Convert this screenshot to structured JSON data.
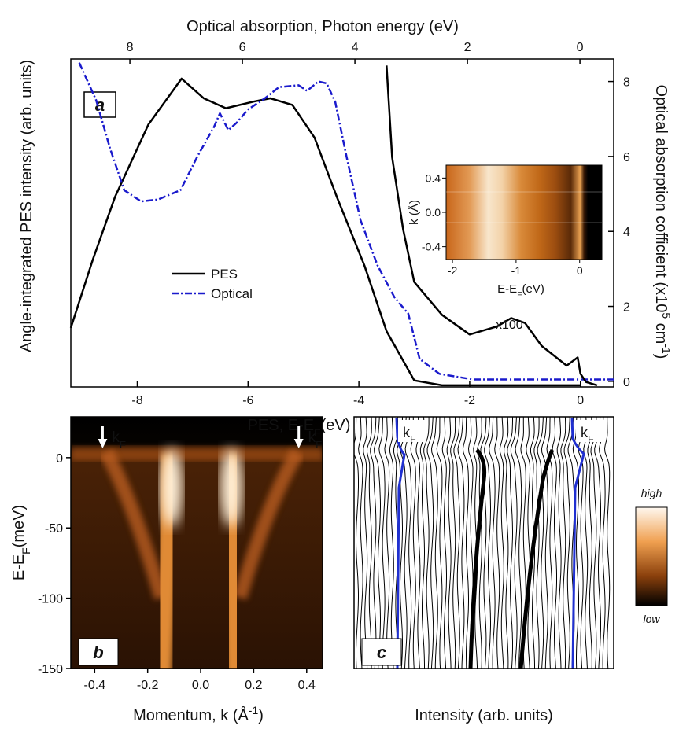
{
  "chart_data": [
    {
      "type": "line",
      "panel_label": "a",
      "xlabel": [
        "PES,  E-E",
        "F",
        "(eV)"
      ],
      "x2label": "Optical absorption, Photon energy (eV)",
      "ylabel": "Angle-integrated PES intensity (arb. units)",
      "y2label": [
        "Optical absorption cofficient (x10",
        "5",
        " cm",
        "-1",
        ")"
      ],
      "xlim": [
        -9.2,
        0.6
      ],
      "xticks": [
        -8,
        -6,
        -4,
        -2,
        0
      ],
      "x2lim": [
        9.05,
        -0.6
      ],
      "x2ticks": [
        8,
        6,
        4,
        2,
        0
      ],
      "ylim": [
        0,
        100
      ],
      "y2lim": [
        -0.15,
        8.6
      ],
      "y2ticks": [
        0,
        2,
        4,
        6,
        8
      ],
      "legend": "center-left",
      "series": [
        {
          "name": "PES",
          "color": "#000000",
          "x": [
            -9.2,
            -8.8,
            -8.4,
            -7.8,
            -7.2,
            -6.8,
            -6.4,
            -5.9,
            -5.6,
            -5.2,
            -4.8,
            -4.4,
            -3.9,
            -3.5,
            -3.2,
            -3.0,
            -2.5,
            0
          ],
          "values": [
            18,
            39,
            58,
            80,
            94,
            88,
            85,
            87,
            88,
            86,
            76,
            58,
            37,
            17,
            8,
            2,
            0.5,
            0.5
          ]
        },
        {
          "name": "Optical",
          "color": "#1a1acc",
          "axis": "y2",
          "x_axis": "x2",
          "dash": true,
          "x": [
            8.9,
            8.6,
            8.35,
            8.1,
            7.8,
            7.5,
            7.1,
            6.8,
            6.5,
            6.4,
            6.25,
            6.1,
            5.9,
            5.6,
            5.35,
            5.0,
            4.85,
            4.65,
            4.5,
            4.35,
            4.15,
            3.9,
            3.6,
            3.3,
            3.05,
            2.85,
            2.5,
            1.9,
            -0.6
          ],
          "values": [
            8.5,
            7.5,
            6.2,
            5.1,
            4.8,
            4.85,
            5.1,
            6.0,
            6.8,
            7.15,
            6.7,
            6.9,
            7.25,
            7.55,
            7.85,
            7.9,
            7.75,
            8.0,
            7.95,
            7.45,
            6.0,
            4.3,
            3.1,
            2.25,
            1.8,
            0.6,
            0.2,
            0.05,
            0.05
          ]
        }
      ],
      "annotations": [
        {
          "label": "x100",
          "color": "#000000",
          "x": [
            -3.5,
            -3.4,
            -3.2,
            -3.0,
            -2.5,
            -2.0,
            -1.5,
            -1.25,
            -1.0,
            -0.7,
            -0.25,
            -0.05,
            0,
            0.1,
            0.3
          ],
          "values": [
            98,
            70,
            48,
            32,
            22,
            16,
            18.5,
            21,
            19.5,
            12.5,
            6.5,
            9,
            4,
            1.5,
            0.5
          ]
        }
      ]
    },
    {
      "type": "heatmap",
      "inset": true,
      "xlabel": [
        "E-E",
        "F",
        "(eV)"
      ],
      "ylabel": "k (Å)",
      "xlim": [
        -2.1,
        0.35
      ],
      "xticks": [
        -2,
        -1,
        0
      ],
      "ylim": [
        -0.55,
        0.55
      ],
      "yticks": [
        0.4,
        {
          "value": 0,
          "label": "0.0"
        },
        -0.4
      ]
    },
    {
      "type": "heatmap",
      "panel_label": "b",
      "xlabel": [
        "Momentum,  k  (Å",
        "-1",
        ")"
      ],
      "ylabel": [
        "E-E",
        "F",
        "(meV)"
      ],
      "xlim": [
        -0.49,
        0.46
      ],
      "xticks": [
        -0.4,
        -0.2,
        {
          "value": 0,
          "label": "0.0"
        },
        0.2,
        0.4
      ],
      "ylim": [
        -150,
        29
      ],
      "yticks": [
        0,
        -50,
        -100,
        -150
      ],
      "annotations": [
        {
          "label": [
            "k",
            "F"
          ],
          "x": -0.37
        },
        {
          "label": [
            "k",
            "F"
          ],
          "x": 0.37
        }
      ]
    },
    {
      "type": "stack",
      "panel_label": "c",
      "xlabel": "Intensity   (arb.  units)",
      "annotations": [
        {
          "label": [
            "k",
            "F"
          ]
        },
        {
          "label": [
            "k",
            "F"
          ]
        }
      ]
    },
    {
      "type": "colorbar",
      "max_label": "high",
      "min_label": "low"
    }
  ]
}
